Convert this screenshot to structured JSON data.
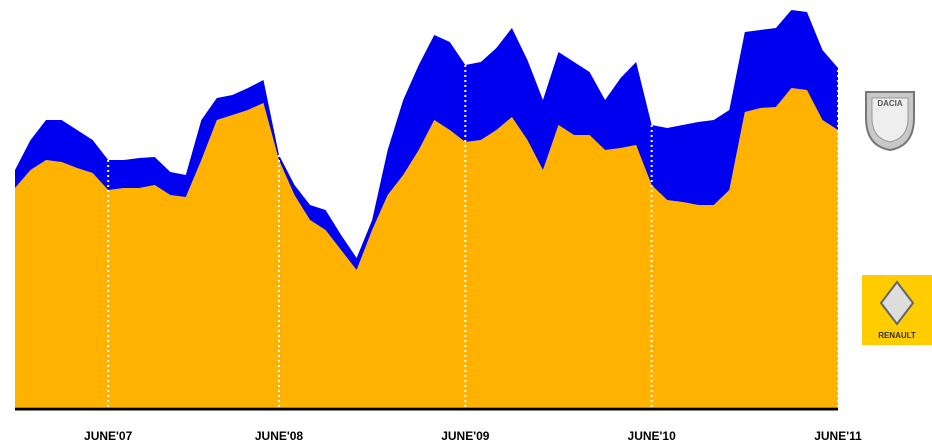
{
  "chart_data": {
    "type": "stacked_area",
    "categories": [
      null,
      null,
      null,
      null,
      null,
      null,
      "JUNE'07",
      null,
      null,
      null,
      null,
      null,
      null,
      null,
      null,
      null,
      null,
      "JUNE'08",
      null,
      null,
      null,
      null,
      null,
      null,
      null,
      null,
      null,
      null,
      null,
      "JUNE'09",
      null,
      null,
      null,
      null,
      null,
      null,
      null,
      null,
      null,
      null,
      null,
      "JUNE'10",
      null,
      null,
      null,
      null,
      null,
      null,
      null,
      null,
      null,
      null,
      null,
      "JUNE'11"
    ],
    "series": [
      {
        "name": "RENAULT",
        "color": "#ffb300",
        "values": [
          219,
          237,
          247,
          245,
          239,
          234,
          217,
          219,
          219,
          222,
          212,
          210,
          247,
          287,
          292,
          297,
          304,
          247,
          212,
          187,
          177,
          157,
          137,
          177,
          212,
          232,
          257,
          287,
          277,
          265,
          267,
          277,
          290,
          267,
          237,
          282,
          272,
          272,
          257,
          259,
          262,
          222,
          207,
          205,
          202,
          202,
          217,
          295,
          299,
          300,
          319,
          317,
          287,
          277
        ]
      },
      {
        "name": "DACIA",
        "color": "#0000f0",
        "values": [
          18,
          30,
          40,
          42,
          38,
          33,
          30,
          28,
          30,
          28,
          23,
          22,
          40,
          22,
          20,
          22,
          23,
          5,
          10,
          15,
          20,
          15,
          12,
          10,
          45,
          75,
          85,
          85,
          88,
          77,
          78,
          82,
          89,
          80,
          70,
          73,
          73,
          63,
          50,
          70,
          83,
          60,
          72,
          77,
          83,
          85,
          80,
          80,
          78,
          79,
          78,
          78,
          70,
          62
        ]
      }
    ],
    "ylim": [
      0,
      400
    ]
  }
}
